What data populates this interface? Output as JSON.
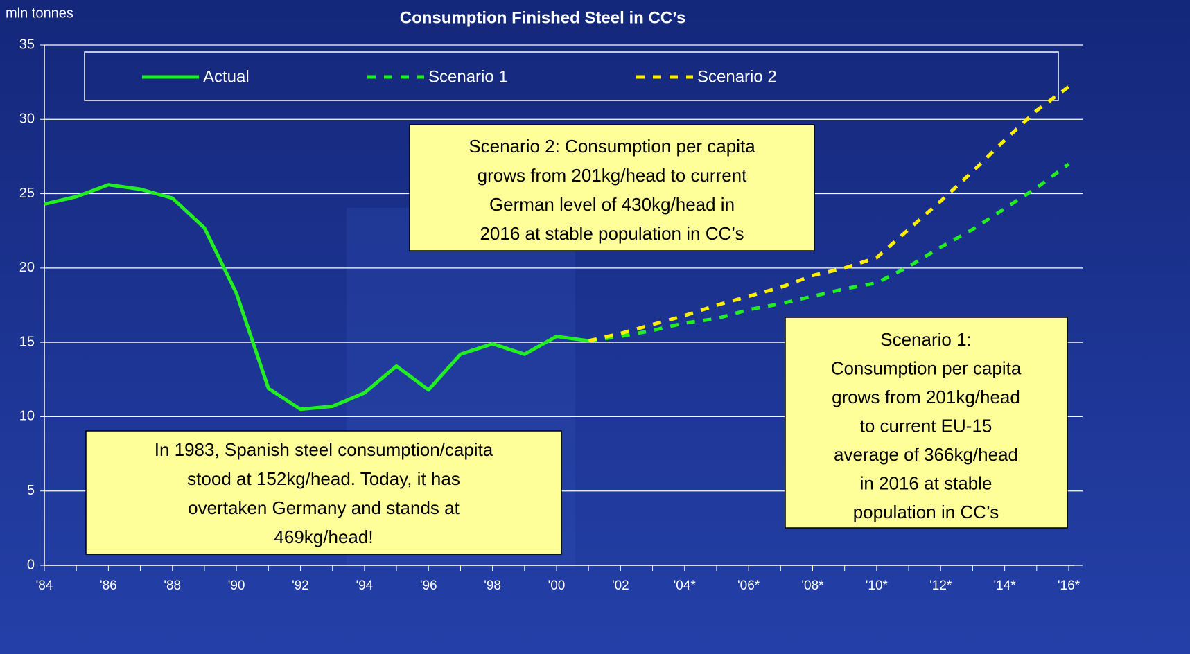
{
  "chart_data": {
    "type": "line",
    "title": "Consumption Finished Steel in CC’s",
    "y_label": "mln tonnes",
    "categories": [
      "'84",
      null,
      "'86",
      null,
      "'88",
      null,
      "'90",
      null,
      "'92",
      null,
      "'94",
      null,
      "'96",
      null,
      "'98",
      null,
      "'00",
      null,
      "'02",
      null,
      "'04*",
      null,
      "'06*",
      null,
      "'08*",
      null,
      "'10*",
      null,
      "'12*",
      null,
      "'14*",
      null,
      "'16*"
    ],
    "series": [
      {
        "name": "Actual",
        "color": "#22ee22",
        "style": "solid",
        "values": [
          24.3,
          24.8,
          25.6,
          25.3,
          24.7,
          22.7,
          18.3,
          11.9,
          10.5,
          10.7,
          11.6,
          13.4,
          11.8,
          14.2,
          14.9,
          14.2,
          15.4,
          15.1,
          null,
          null,
          null,
          null,
          null,
          null,
          null,
          null,
          null,
          null,
          null,
          null,
          null,
          null,
          null
        ]
      },
      {
        "name": "Scenario 1",
        "color": "#22ee22",
        "style": "dashed",
        "values": [
          null,
          null,
          null,
          null,
          null,
          null,
          null,
          null,
          null,
          null,
          null,
          null,
          null,
          null,
          null,
          null,
          null,
          15.1,
          15.4,
          15.8,
          16.3,
          16.6,
          17.2,
          17.6,
          18.1,
          18.6,
          19.0,
          20.1,
          21.4,
          22.6,
          24.0,
          25.4,
          27.0
        ]
      },
      {
        "name": "Scenario 2",
        "color": "#ffee00",
        "style": "dashed",
        "values": [
          null,
          null,
          null,
          null,
          null,
          null,
          null,
          null,
          null,
          null,
          null,
          null,
          null,
          null,
          null,
          null,
          null,
          15.1,
          15.6,
          16.2,
          16.8,
          17.5,
          18.1,
          18.7,
          19.5,
          20.0,
          20.7,
          22.6,
          24.5,
          26.5,
          28.6,
          30.6,
          32.2
        ]
      }
    ],
    "ylim": [
      0,
      35
    ],
    "yticks": [
      0,
      5,
      10,
      15,
      20,
      25,
      30,
      35
    ],
    "grid": true,
    "annotations": [
      {
        "lines": [
          "Scenario 2: Consumption per capita",
          "grows from 201kg/head to current",
          "German level of 430kg/head in",
          "2016 at stable population in CC’s"
        ]
      },
      {
        "lines": [
          "Scenario 1:",
          "Consumption per capita",
          "grows from 201kg/head",
          "to current EU-15",
          "average of 366kg/head",
          "in 2016 at stable",
          "population in CC’s"
        ]
      },
      {
        "lines": [
          "In 1983, Spanish steel consumption/capita",
          "stood at 152kg/head. Today, it has",
          "overtaken Germany and stands at",
          "469kg/head!"
        ]
      }
    ]
  }
}
